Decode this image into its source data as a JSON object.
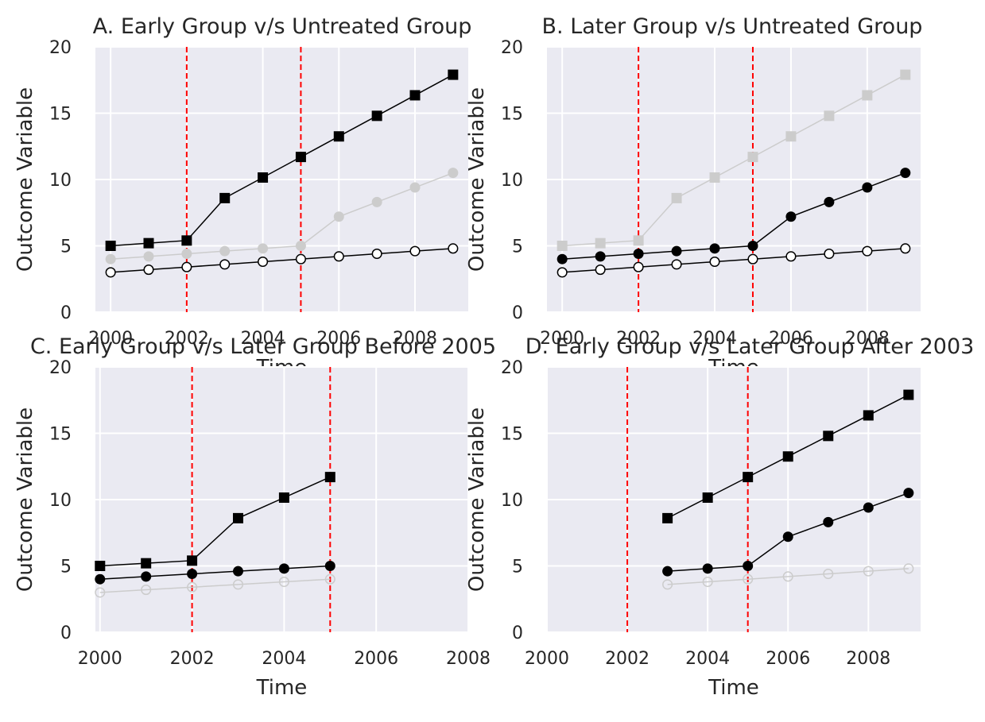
{
  "colors": {
    "plot_background": "#eaeaf2",
    "grid": "#ffffff",
    "vline": "#ff0000",
    "series_active": "#000000",
    "series_faded": "#cccccc"
  },
  "chart_data": [
    {
      "type": "line",
      "title": "A. Early Group v/s Untreated Group",
      "xlabel": "Time",
      "ylabel": "Outcome Variable",
      "xlim": [
        1999.6,
        2009.4
      ],
      "ylim": [
        0,
        20
      ],
      "xticks": [
        2000,
        2002,
        2004,
        2006,
        2008
      ],
      "yticks": [
        0,
        5,
        10,
        15,
        20
      ],
      "grid": true,
      "vlines": [
        2002,
        2005
      ],
      "series": [
        {
          "style": "faded",
          "marker": "circle-filled",
          "x": [
            2000,
            2001,
            2002,
            2003,
            2004,
            2005,
            2006,
            2007,
            2008,
            2009
          ],
          "values": [
            4,
            4.2,
            4.4,
            4.6,
            4.8,
            5.0,
            7.2,
            8.3,
            9.4,
            10.5
          ]
        },
        {
          "style": "active",
          "marker": "square",
          "x": [
            2000,
            2001,
            2002,
            2003,
            2004,
            2005,
            2006,
            2007,
            2008,
            2009
          ],
          "values": [
            5,
            5.2,
            5.4,
            8.6,
            10.15,
            11.7,
            13.25,
            14.8,
            16.35,
            17.9
          ]
        },
        {
          "style": "active",
          "marker": "circle-open",
          "x": [
            2000,
            2001,
            2002,
            2003,
            2004,
            2005,
            2006,
            2007,
            2008,
            2009
          ],
          "values": [
            3,
            3.2,
            3.4,
            3.6,
            3.8,
            4.0,
            4.2,
            4.4,
            4.6,
            4.8
          ]
        }
      ]
    },
    {
      "type": "line",
      "title": "B. Later Group v/s Untreated Group",
      "xlabel": "Time",
      "ylabel": "Outcome Variable",
      "xlim": [
        1999.6,
        2009.4
      ],
      "ylim": [
        0,
        20
      ],
      "xticks": [
        2000,
        2002,
        2004,
        2006,
        2008
      ],
      "yticks": [
        0,
        5,
        10,
        15,
        20
      ],
      "grid": true,
      "vlines": [
        2002,
        2005
      ],
      "series": [
        {
          "style": "faded",
          "marker": "square",
          "x": [
            2000,
            2001,
            2002,
            2003,
            2004,
            2005,
            2006,
            2007,
            2008,
            2009
          ],
          "values": [
            5,
            5.2,
            5.4,
            8.6,
            10.15,
            11.7,
            13.25,
            14.8,
            16.35,
            17.9
          ]
        },
        {
          "style": "active",
          "marker": "circle-filled",
          "x": [
            2000,
            2001,
            2002,
            2003,
            2004,
            2005,
            2006,
            2007,
            2008,
            2009
          ],
          "values": [
            4,
            4.2,
            4.4,
            4.6,
            4.8,
            5.0,
            7.2,
            8.3,
            9.4,
            10.5
          ]
        },
        {
          "style": "active",
          "marker": "circle-open",
          "x": [
            2000,
            2001,
            2002,
            2003,
            2004,
            2005,
            2006,
            2007,
            2008,
            2009
          ],
          "values": [
            3,
            3.2,
            3.4,
            3.6,
            3.8,
            4.0,
            4.2,
            4.4,
            4.6,
            4.8
          ]
        }
      ]
    },
    {
      "type": "line",
      "title": "C. Early Group v/s Later Group Before 2005",
      "xlabel": "Time",
      "ylabel": "Outcome Variable",
      "xlim": [
        1999.9,
        2008
      ],
      "ylim": [
        0,
        20
      ],
      "xticks": [
        2000,
        2002,
        2004,
        2006,
        2008
      ],
      "yticks": [
        0,
        5,
        10,
        15,
        20
      ],
      "grid": true,
      "vlines": [
        2002,
        2005
      ],
      "series": [
        {
          "style": "faded",
          "marker": "circle-open",
          "x": [
            2000,
            2001,
            2002,
            2003,
            2004,
            2005
          ],
          "values": [
            3,
            3.2,
            3.4,
            3.6,
            3.8,
            4.0
          ]
        },
        {
          "style": "active",
          "marker": "square",
          "x": [
            2000,
            2001,
            2002,
            2003,
            2004,
            2005
          ],
          "values": [
            5,
            5.2,
            5.4,
            8.6,
            10.15,
            11.7
          ]
        },
        {
          "style": "active",
          "marker": "circle-filled",
          "x": [
            2000,
            2001,
            2002,
            2003,
            2004,
            2005
          ],
          "values": [
            4,
            4.2,
            4.4,
            4.6,
            4.8,
            5.0
          ]
        }
      ]
    },
    {
      "type": "line",
      "title": "D. Early Group v/s Later Group After 2003",
      "xlabel": "Time",
      "ylabel": "Outcome Variable",
      "xlim": [
        2000,
        2009.3
      ],
      "ylim": [
        0,
        20
      ],
      "xticks": [
        2000,
        2002,
        2004,
        2006,
        2008
      ],
      "yticks": [
        0,
        5,
        10,
        15,
        20
      ],
      "grid": true,
      "vlines": [
        2002,
        2005
      ],
      "series": [
        {
          "style": "faded",
          "marker": "circle-open",
          "x": [
            2003,
            2004,
            2005,
            2006,
            2007,
            2008,
            2009
          ],
          "values": [
            3.6,
            3.8,
            4.0,
            4.2,
            4.4,
            4.6,
            4.8
          ]
        },
        {
          "style": "active",
          "marker": "square",
          "x": [
            2003,
            2004,
            2005,
            2006,
            2007,
            2008,
            2009
          ],
          "values": [
            8.6,
            10.15,
            11.7,
            13.25,
            14.8,
            16.35,
            17.9
          ]
        },
        {
          "style": "active",
          "marker": "circle-filled",
          "x": [
            2003,
            2004,
            2005,
            2006,
            2007,
            2008,
            2009
          ],
          "values": [
            4.6,
            4.8,
            5.0,
            7.2,
            8.3,
            9.4,
            10.5
          ]
        }
      ]
    }
  ]
}
